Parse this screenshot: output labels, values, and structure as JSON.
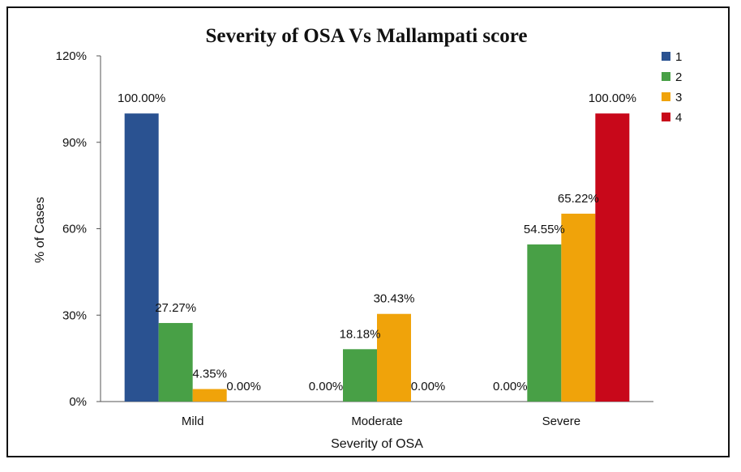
{
  "chart_data": {
    "type": "bar",
    "title": "Severity of OSA Vs Mallampati score",
    "xlabel": "Severity of OSA",
    "ylabel": "% of Cases",
    "categories": [
      "Mild",
      "Moderate",
      "Severe"
    ],
    "ylim": [
      0,
      120
    ],
    "yticks": [
      0,
      30,
      60,
      90,
      120
    ],
    "ytick_labels": [
      "0%",
      "30%",
      "60%",
      "90%",
      "120%"
    ],
    "grid": false,
    "legend_position": "top-right",
    "series": [
      {
        "name": "1",
        "color": "#2a5291",
        "values": [
          100,
          0,
          0
        ],
        "labels": [
          "100.00%",
          "0.00%",
          "0.00%"
        ]
      },
      {
        "name": "2",
        "color": "#48a046",
        "values": [
          27.27,
          18.18,
          54.55
        ],
        "labels": [
          "27.27%",
          "18.18%",
          "54.55%"
        ]
      },
      {
        "name": "3",
        "color": "#f0a30a",
        "values": [
          4.35,
          30.43,
          65.22
        ],
        "labels": [
          "4.35%",
          "30.43%",
          "65.22%"
        ]
      },
      {
        "name": "4",
        "color": "#c8081a",
        "values": [
          0,
          0,
          100
        ],
        "labels": [
          "0.00%",
          "0.00%",
          "100.00%"
        ]
      }
    ]
  }
}
